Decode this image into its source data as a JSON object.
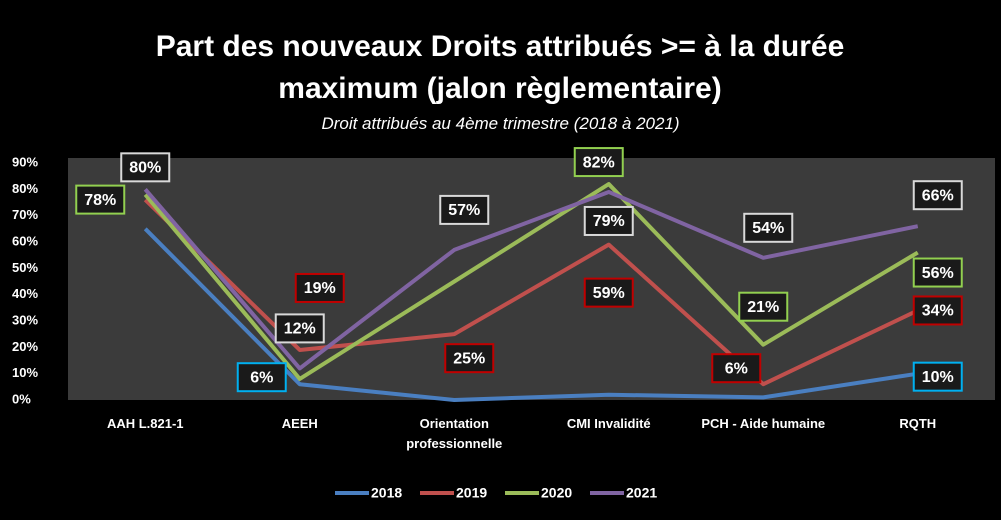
{
  "chart_data": {
    "type": "line",
    "title": "Part des nouveaux Droits attribués  >= à la durée maximum (jalon règlementaire)",
    "subtitle": "Droit attribués au 4ème trimestre (2018 à 2021)",
    "categories": [
      "AAH L.821-1",
      "AEEH",
      "Orientation professionnelle",
      "CMI Invalidité",
      "PCH - Aide humaine",
      "RQTH"
    ],
    "series": [
      {
        "name": "2018",
        "color": "#4a7fc1",
        "label_color": "#00b0f0",
        "values": [
          65,
          6,
          0,
          2,
          1,
          10
        ],
        "value_labels": [
          null,
          "6%",
          null,
          null,
          null,
          "10%"
        ]
      },
      {
        "name": "2019",
        "color": "#c0504d",
        "label_color": "#c00000",
        "values": [
          76,
          19,
          25,
          59,
          6,
          34
        ],
        "value_labels": [
          null,
          "19%",
          "25%",
          "59%",
          "6%",
          "34%"
        ]
      },
      {
        "name": "2020",
        "color": "#9bbb59",
        "label_color": "#92d050",
        "values": [
          78,
          8,
          45,
          82,
          21,
          56
        ],
        "value_labels": [
          "78%",
          null,
          null,
          "82%",
          "21%",
          "56%"
        ]
      },
      {
        "name": "2021",
        "color": "#8064a2",
        "label_color": "#d9d9d9",
        "values": [
          80,
          12,
          57,
          79,
          54,
          66
        ],
        "value_labels": [
          "80%",
          "12%",
          "57%",
          "79%",
          "54%",
          "66%"
        ]
      }
    ],
    "ylim": [
      0,
      90
    ],
    "yticks": [
      {
        "value": 0,
        "label": "0%"
      },
      {
        "value": 10,
        "label": "10%"
      },
      {
        "value": 20,
        "label": "20%"
      },
      {
        "value": 30,
        "label": "30%"
      },
      {
        "value": 40,
        "label": "40%"
      },
      {
        "value": 50,
        "label": "50%"
      },
      {
        "value": 60,
        "label": "60%"
      },
      {
        "value": 70,
        "label": "70%"
      },
      {
        "value": 80,
        "label": "80%"
      },
      {
        "value": 90,
        "label": "90%"
      }
    ],
    "legend": "bottom"
  }
}
